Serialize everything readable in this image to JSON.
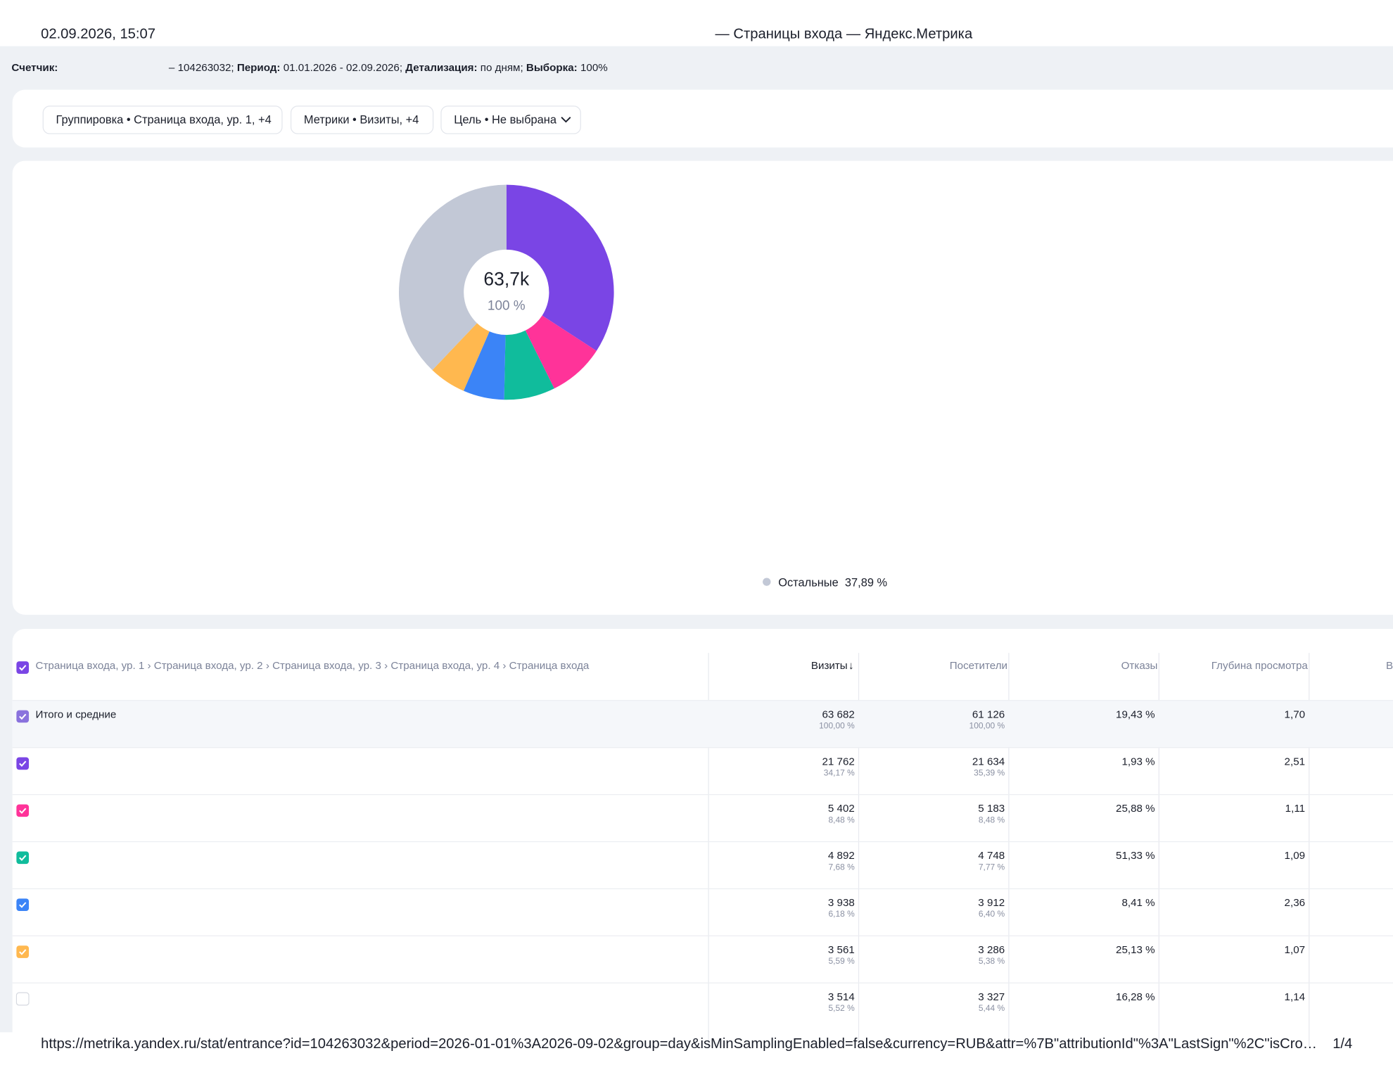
{
  "header": {
    "datetime": "02.09.2026, 15:07",
    "title": "— Страницы входа — Яндекс.Метрика"
  },
  "info": {
    "counter_label": "Счетчик:",
    "counter": "– 104263032;",
    "period_label": "Период:",
    "period": "01.01.2026 - 02.09.2026;",
    "detail_label": "Детализация:",
    "detail": "по дням;",
    "sample_label": "Выборка:",
    "sample": "100%"
  },
  "filters": [
    "Группировка • Страница входа, ур. 1, +4",
    "Метрики • Визиты, +4",
    "Цель • Не выбрана"
  ],
  "chart_data": {
    "type": "pie",
    "center_value": "63,7k",
    "center_share": "100 %",
    "categories": [
      null,
      null,
      null,
      null,
      null,
      "Остальные"
    ],
    "values": [
      34.17,
      8.48,
      7.68,
      6.18,
      5.59,
      37.89
    ],
    "value_labels": [
      null,
      null,
      null,
      null,
      null,
      "37,89 %"
    ],
    "colors": [
      "#7a45e5",
      "#ff3399",
      "#10bc9c",
      "#3b84f7",
      "#ffb84f",
      "#c2c8d6"
    ]
  },
  "table": {
    "columns": [
      "Страница входа, ур. 1 › Страница входа, ур. 2 › Страница входа, ур. 3 › Страница входа, ур. 4 › Страница входа",
      "Визиты",
      "Посетители",
      "Отказы",
      "Глубина просмотра",
      "В"
    ],
    "rows": [
      {
        "label": "Итого и средние",
        "visits": "63 682",
        "visits_share": "100,00 %",
        "visitors": "61 126",
        "visitors_share": "100,00 %",
        "bounce": "19,43 %",
        "depth": "1,70"
      },
      {
        "visits": "21 762",
        "visits_share": "34,17 %",
        "visitors": "21 634",
        "visitors_share": "35,39 %",
        "bounce": "1,93 %",
        "depth": "2,51"
      },
      {
        "visits": "5 402",
        "visits_share": "8,48 %",
        "visitors": "5 183",
        "visitors_share": "8,48 %",
        "bounce": "25,88 %",
        "depth": "1,11"
      },
      {
        "visits": "4 892",
        "visits_share": "7,68 %",
        "visitors": "4 748",
        "visitors_share": "7,77 %",
        "bounce": "51,33 %",
        "depth": "1,09"
      },
      {
        "visits": "3 938",
        "visits_share": "6,18 %",
        "visitors": "3 912",
        "visitors_share": "6,40 %",
        "bounce": "8,41 %",
        "depth": "2,36"
      },
      {
        "visits": "3 561",
        "visits_share": "5,59 %",
        "visitors": "3 286",
        "visitors_share": "5,38 %",
        "bounce": "25,13 %",
        "depth": "1,07"
      },
      {
        "visits": "3 514",
        "visits_share": "5,52 %",
        "visitors": "3 327",
        "visitors_share": "5,44 %",
        "bounce": "16,28 %",
        "depth": "1,14"
      }
    ]
  },
  "footer": {
    "url": "https://metrika.yandex.ru/stat/entrance?id=104263032&period=2026-01-01%3A2026-09-02&group=day&isMinSamplingEnabled=false&currency=RUB&attr=%7B\"attributionId\"%3A\"LastSign\"%2C\"isCro…",
    "page": "1/4"
  }
}
